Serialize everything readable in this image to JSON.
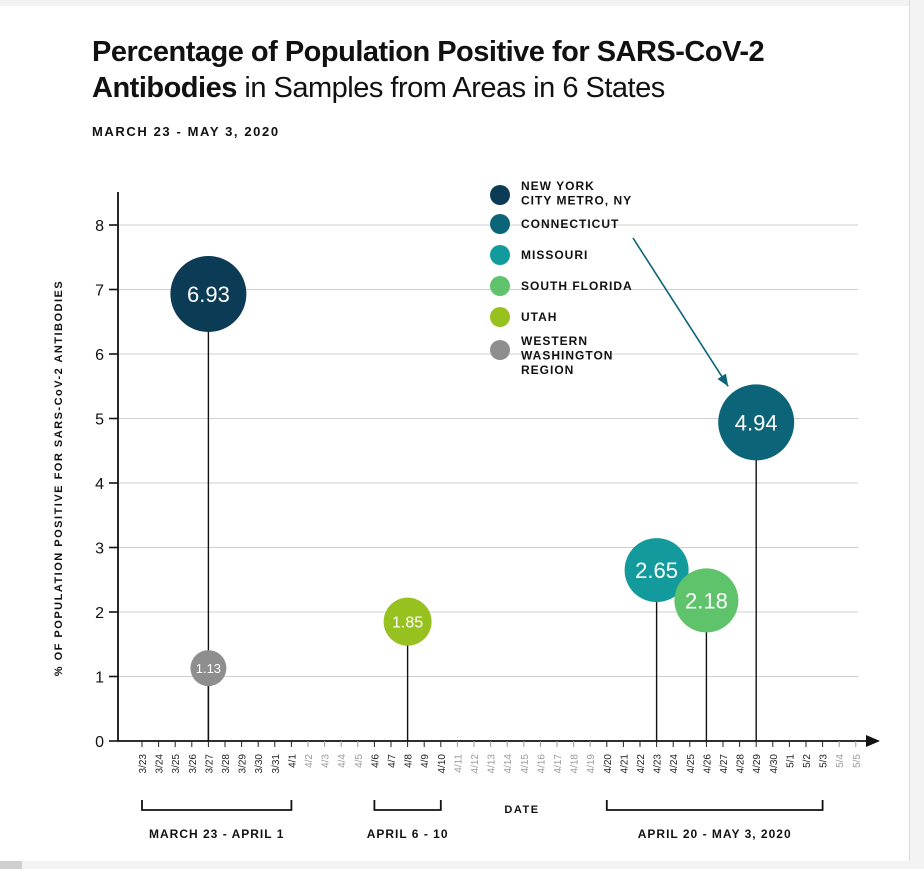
{
  "header": {
    "title_bold_1": "Percentage of Population Positive for SARS-CoV-2",
    "title_bold_2": "Antibodies",
    "title_light_2": " in Samples from Areas in 6 States",
    "subtitle": "MARCH 23 - MAY 3, 2020"
  },
  "chart_data": {
    "type": "scatter",
    "title": "Percentage of Population Positive for SARS-CoV-2 Antibodies in Samples from Areas in 6 States",
    "subtitle": "MARCH 23 - MAY 3, 2020",
    "xlabel": "DATE",
    "ylabel": "% OF POPULATION POSITIVE FOR SARS-CoV-2 ANTIBODIES",
    "ylim": [
      0,
      8
    ],
    "yticks": [
      0,
      1,
      2,
      3,
      4,
      5,
      6,
      7,
      8
    ],
    "grid": true,
    "x_categories": [
      "3/23",
      "3/24",
      "3/25",
      "3/26",
      "3/27",
      "3/28",
      "3/29",
      "3/30",
      "3/31",
      "4/1",
      "4/2",
      "4/3",
      "4/4",
      "4/5",
      "4/6",
      "4/7",
      "4/8",
      "4/9",
      "4/10",
      "4/11",
      "4/12",
      "4/13",
      "4/14",
      "4/15",
      "4/16",
      "4/17",
      "4/18",
      "4/19",
      "4/20",
      "4/21",
      "4/22",
      "4/23",
      "4/24",
      "4/25",
      "4/26",
      "4/27",
      "4/28",
      "4/29",
      "4/30",
      "5/1",
      "5/2",
      "5/3",
      "5/4",
      "5/5"
    ],
    "x_active": [
      "3/23",
      "3/24",
      "3/25",
      "3/26",
      "3/27",
      "3/28",
      "3/29",
      "3/30",
      "3/31",
      "4/1",
      "4/6",
      "4/7",
      "4/8",
      "4/9",
      "4/10",
      "4/20",
      "4/21",
      "4/22",
      "4/23",
      "4/24",
      "4/25",
      "4/26",
      "4/27",
      "4/28",
      "4/29",
      "4/30",
      "5/1",
      "5/2",
      "5/3"
    ],
    "series": [
      {
        "name": "NEW YORK CITY METRO, NY",
        "x": "3/27",
        "value": 6.93,
        "label": "6.93",
        "color": "#0c3b55"
      },
      {
        "name": "CONNECTICUT",
        "x": "4/29",
        "value": 4.94,
        "label": "4.94",
        "color": "#0b6478"
      },
      {
        "name": "MISSOURI",
        "x": "4/23",
        "value": 2.65,
        "label": "2.65",
        "color": "#139a9c"
      },
      {
        "name": "SOUTH FLORIDA",
        "x": "4/26",
        "value": 2.18,
        "label": "2.18",
        "color": "#5ec36a"
      },
      {
        "name": "UTAH",
        "x": "4/8",
        "value": 1.85,
        "label": "1.85",
        "color": "#96c11f"
      },
      {
        "name": "WESTERN WASHINGTON REGION",
        "x": "3/27",
        "value": 1.13,
        "label": "1.13",
        "color": "#8e8e8e"
      }
    ],
    "legend": {
      "placement": "top-right",
      "items": [
        {
          "lines": [
            "NEW YORK",
            "CITY METRO, NY"
          ],
          "color": "#0c3b55"
        },
        {
          "lines": [
            "CONNECTICUT"
          ],
          "color": "#0b6478"
        },
        {
          "lines": [
            "MISSOURI"
          ],
          "color": "#139a9c"
        },
        {
          "lines": [
            "SOUTH FLORIDA"
          ],
          "color": "#5ec36a"
        },
        {
          "lines": [
            "UTAH"
          ],
          "color": "#96c11f"
        },
        {
          "lines": [
            "WESTERN",
            "WASHINGTON",
            "REGION"
          ],
          "color": "#8e8e8e"
        }
      ]
    },
    "annotation": {
      "from_legend": "CONNECTICUT",
      "to_series": "CONNECTICUT"
    },
    "brackets": [
      {
        "label": "MARCH 23 - APRIL 1",
        "start": "3/23",
        "end": "4/1"
      },
      {
        "label": "APRIL 6 - 10",
        "start": "4/6",
        "end": "4/10"
      },
      {
        "label": "APRIL 20 - MAY 3, 2020",
        "start": "4/20",
        "end": "5/3"
      }
    ],
    "colors": {
      "active_tick": "#222222",
      "inactive_tick": "#9a9a9a",
      "grid": "#cfcfcf",
      "axis": "#111111"
    }
  }
}
